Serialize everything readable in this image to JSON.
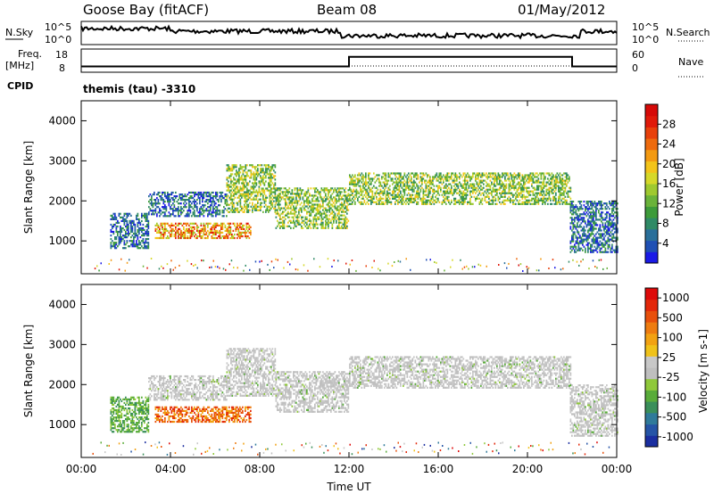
{
  "header": {
    "station": "Goose Bay (fitACF)",
    "beam": "Beam 08",
    "date": "01/May/2012"
  },
  "noise_panel": {
    "left_label": "N.Sky",
    "left_ticks": [
      "10^5",
      "10^0"
    ],
    "right_ticks": [
      "10^5",
      "10^0"
    ],
    "right_label": "N.Search"
  },
  "freq_panel": {
    "left_label_1": "Freq.",
    "left_label_2": "[MHz]",
    "left_ticks": [
      "18",
      "8"
    ],
    "right_ticks": [
      "60",
      "0"
    ],
    "right_label": "Nave",
    "nave_series": [
      {
        "t": 0,
        "v": 15
      },
      {
        "t": 12,
        "v": 15
      },
      {
        "t": 12,
        "v": 40
      },
      {
        "t": 22,
        "v": 40
      },
      {
        "t": 22,
        "v": 15
      },
      {
        "t": 24,
        "v": 15
      }
    ]
  },
  "cpid": {
    "label": "CPID",
    "text": "themis (tau) -3310"
  },
  "chart_data": [
    {
      "type": "heatmap",
      "name": "power",
      "ylabel": "Slant Range [km]",
      "yticks": [
        "1000",
        "2000",
        "3000",
        "4000"
      ],
      "ylim": [
        180,
        4500
      ],
      "xlim": [
        0,
        24
      ],
      "colorbar": {
        "label": "Power [dB]",
        "ticks": [
          "4",
          "8",
          "12",
          "16",
          "20",
          "24",
          "28"
        ],
        "colors": [
          "#1a1ae6",
          "#1f50b4",
          "#2a6f9a",
          "#2f8a66",
          "#3d9b3a",
          "#6ab33a",
          "#9fc92f",
          "#d6d829",
          "#f3c41a",
          "#f39a12",
          "#ee6b0e",
          "#e8400b",
          "#e01a0a",
          "#d60a08"
        ]
      },
      "echo_regions": [
        {
          "t0": 1.3,
          "t1": 3.0,
          "r0": 800,
          "r1": 1700,
          "level": "low"
        },
        {
          "t0": 3.0,
          "t1": 6.5,
          "r0": 1600,
          "r1": 2200,
          "level": "low"
        },
        {
          "t0": 3.3,
          "t1": 7.6,
          "r0": 1050,
          "r1": 1450,
          "level": "high"
        },
        {
          "t0": 6.5,
          "t1": 8.7,
          "r0": 1700,
          "r1": 2900,
          "level": "mid"
        },
        {
          "t0": 8.7,
          "t1": 12.0,
          "r0": 1300,
          "r1": 2300,
          "level": "mid"
        },
        {
          "t0": 12.0,
          "t1": 21.9,
          "r0": 1900,
          "r1": 2700,
          "level": "mid"
        },
        {
          "t0": 21.9,
          "t1": 24.0,
          "r0": 700,
          "r1": 2000,
          "level": "low"
        }
      ]
    },
    {
      "type": "heatmap",
      "name": "velocity",
      "ylabel": "Slant Range [km]",
      "yticks": [
        "1000",
        "2000",
        "3000",
        "4000"
      ],
      "ylim": [
        180,
        4500
      ],
      "xlim": [
        0,
        24
      ],
      "xlabel": "Time UT",
      "xticks": [
        "00:00",
        "04:00",
        "08:00",
        "12:00",
        "16:00",
        "20:00",
        "00:00"
      ],
      "colorbar": {
        "label": "Velocity [m s-1]",
        "ticks": [
          "1000",
          "500",
          "100",
          "25",
          "-25",
          "-100",
          "-500",
          "-1000"
        ],
        "colors": [
          "#1a2ea0",
          "#2554a6",
          "#2f7a9a",
          "#3a8f5a",
          "#59ac3a",
          "#8fc83a",
          "#bfbfbf",
          "#c8c8c8",
          "#f0c21a",
          "#f2a212",
          "#ee7c10",
          "#e8500c",
          "#e3280a",
          "#de0a0a"
        ]
      },
      "echo_regions": [
        {
          "t0": 1.3,
          "t1": 3.0,
          "r0": 800,
          "r1": 1700,
          "level": "green"
        },
        {
          "t0": 3.0,
          "t1": 6.5,
          "r0": 1600,
          "r1": 2200,
          "level": "grey"
        },
        {
          "t0": 3.3,
          "t1": 7.6,
          "r0": 1050,
          "r1": 1450,
          "level": "orange"
        },
        {
          "t0": 6.5,
          "t1": 8.7,
          "r0": 1700,
          "r1": 2900,
          "level": "grey"
        },
        {
          "t0": 8.7,
          "t1": 12.0,
          "r0": 1300,
          "r1": 2300,
          "level": "grey"
        },
        {
          "t0": 12.0,
          "t1": 21.9,
          "r0": 1900,
          "r1": 2700,
          "level": "grey"
        },
        {
          "t0": 21.9,
          "t1": 24.0,
          "r0": 700,
          "r1": 2000,
          "level": "grey"
        }
      ]
    }
  ]
}
